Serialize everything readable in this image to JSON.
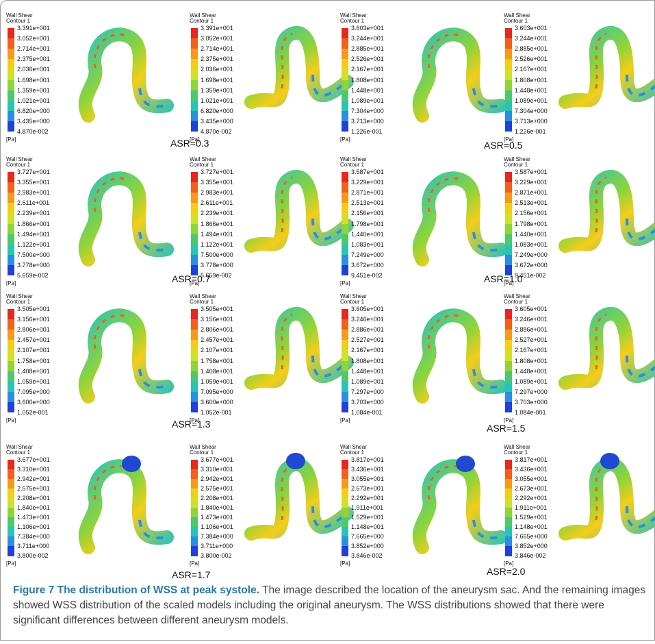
{
  "panels": [
    {
      "title": "Wall Shear",
      "subtitle": "Contour 1",
      "levels": [
        "3.391e+001",
        "3.052e+001",
        "2.714e+001",
        "2.375e+001",
        "2.036e+001",
        "1.698e+001",
        "1.359e+001",
        "1.021e+001",
        "6.820e+000",
        "3.435e+000",
        "4.870e-002"
      ],
      "unit": "[Pa]"
    },
    {
      "title": "Wall Shear",
      "subtitle": "Contour 1",
      "levels": [
        "3.391e+001",
        "3.052e+001",
        "2.714e+001",
        "2.375e+001",
        "2.036e+001",
        "1.698e+001",
        "1.359e+001",
        "1.021e+001",
        "6.820e+000",
        "3.435e+000",
        "4.870e-002"
      ],
      "unit": "[Pa]"
    },
    {
      "title": "Wall Shear",
      "subtitle": "Contour 1",
      "levels": [
        "3.603e+001",
        "3.244e+001",
        "2.885e+001",
        "2.526e+001",
        "2.167e+001",
        "1.808e+001",
        "1.448e+001",
        "1.089e+001",
        "7.304e+000",
        "3.713e+000",
        "1.226e-001"
      ],
      "unit": "[Pa]"
    },
    {
      "title": "Wall Shear",
      "subtitle": "Contour 1",
      "levels": [
        "3.603e+001",
        "3.244e+001",
        "2.885e+001",
        "2.526e+001",
        "2.167e+001",
        "1.808e+001",
        "1.448e+001",
        "1.089e+001",
        "7.304e+000",
        "3.713e+000",
        "1.226e-001"
      ],
      "unit": "[Pa]"
    },
    {
      "title": "Wall Shear",
      "subtitle": "Contour 1",
      "levels": [
        "3.727e+001",
        "3.355e+001",
        "2.983e+001",
        "2.611e+001",
        "2.239e+001",
        "1.866e+001",
        "1.494e+001",
        "1.122e+001",
        "7.500e+000",
        "3.778e+000",
        "5.659e-002"
      ],
      "unit": "[Pa]"
    },
    {
      "title": "Wall Shear",
      "subtitle": "Contour 1",
      "levels": [
        "3.727e+001",
        "3.355e+001",
        "2.983e+001",
        "2.611e+001",
        "2.239e+001",
        "1.866e+001",
        "1.494e+001",
        "1.122e+001",
        "7.500e+000",
        "3.778e+000",
        "5.659e-002"
      ],
      "unit": "[Pa]"
    },
    {
      "title": "Wall Shear",
      "subtitle": "Contour 1",
      "levels": [
        "3.587e+001",
        "3.229e+001",
        "2.871e+001",
        "2.513e+001",
        "2.156e+001",
        "1.798e+001",
        "1.440e+001",
        "1.083e+001",
        "7.249e+000",
        "3.672e+000",
        "9.451e-002"
      ],
      "unit": "[Pa]"
    },
    {
      "title": "Wall Shear",
      "subtitle": "Contour 1",
      "levels": [
        "3.587e+001",
        "3.229e+001",
        "2.871e+001",
        "2.513e+001",
        "2.156e+001",
        "1.798e+001",
        "1.440e+001",
        "1.083e+001",
        "7.249e+000",
        "3.672e+000",
        "9.451e-002"
      ],
      "unit": "[Pa]"
    },
    {
      "title": "Wall Shear",
      "subtitle": "Contour 1",
      "levels": [
        "3.505e+001",
        "3.156e+001",
        "2.806e+001",
        "2.457e+001",
        "2.107e+001",
        "1.758e+001",
        "1.408e+001",
        "1.059e+001",
        "7.095e+000",
        "3.600e+000",
        "1.052e-001"
      ],
      "unit": "[Pa]"
    },
    {
      "title": "Wall Shear",
      "subtitle": "Contour 1",
      "levels": [
        "3.505e+001",
        "3.156e+001",
        "2.806e+001",
        "2.457e+001",
        "2.107e+001",
        "1.758e+001",
        "1.408e+001",
        "1.059e+001",
        "7.095e+000",
        "3.600e+000",
        "1.052e-001"
      ],
      "unit": "[Pa]"
    },
    {
      "title": "Wall Shear",
      "subtitle": "Contour 1",
      "levels": [
        "3.605e+001",
        "3.246e+001",
        "2.886e+001",
        "2.527e+001",
        "2.167e+001",
        "1.808e+001",
        "1.448e+001",
        "1.089e+001",
        "7.297e+000",
        "3.703e+000",
        "1.084e-001"
      ],
      "unit": "[Pa]"
    },
    {
      "title": "Wall Shear",
      "subtitle": "Contour 1",
      "levels": [
        "3.605e+001",
        "3.246e+001",
        "2.886e+001",
        "2.527e+001",
        "2.167e+001",
        "1.808e+001",
        "1.448e+001",
        "1.089e+001",
        "7.297e+000",
        "3.703e+000",
        "1.084e-001"
      ],
      "unit": "[Pa]"
    },
    {
      "title": "Wall Shear",
      "subtitle": "Contour 1",
      "levels": [
        "3.677e+001",
        "3.310e+001",
        "2.942e+001",
        "2.575e+001",
        "2.208e+001",
        "1.840e+001",
        "1.473e+001",
        "1.106e+001",
        "7.384e+000",
        "3.711e+000",
        "3.800e-002"
      ],
      "unit": "[Pa]"
    },
    {
      "title": "Wall Shear",
      "subtitle": "Contour 1",
      "levels": [
        "3.677e+001",
        "3.310e+001",
        "2.942e+001",
        "2.575e+001",
        "2.208e+001",
        "1.840e+001",
        "1.473e+001",
        "1.106e+001",
        "7.384e+000",
        "3.711e+000",
        "3.800e-002"
      ],
      "unit": "[Pa]"
    },
    {
      "title": "Wall Shear",
      "subtitle": "Contour 1",
      "levels": [
        "3.817e+001",
        "3.436e+001",
        "3.055e+001",
        "2.673e+001",
        "2.292e+001",
        "1.911e+001",
        "1.529e+001",
        "1.148e+001",
        "7.665e+000",
        "3.852e+000",
        "3.846e-002"
      ],
      "unit": "[Pa]"
    },
    {
      "title": "Wall Shear",
      "subtitle": "Contour 1",
      "levels": [
        "3.817e+001",
        "3.436e+001",
        "3.055e+001",
        "2.673e+001",
        "2.292e+001",
        "1.911e+001",
        "1.529e+001",
        "1.148e+001",
        "7.665e+000",
        "3.852e+000",
        "3.846e-002"
      ],
      "unit": "[Pa]"
    }
  ],
  "labels": [
    "ASR=0.3",
    "ASR=0.5",
    "ASR=0.7",
    "ASR=1.0",
    "ASR=1.3",
    "ASR=1.5",
    "ASR=1.7",
    "ASR=2.0"
  ],
  "caption": {
    "title": "Figure 7 The distribution of WSS at peak systole.",
    "text": "The image described the location of the aneurysm sac. And the remaining images showed WSS distribution of the scaled models including the original aneurysm. The WSS distributions showed that there were significant differences between different aneurysm models."
  }
}
